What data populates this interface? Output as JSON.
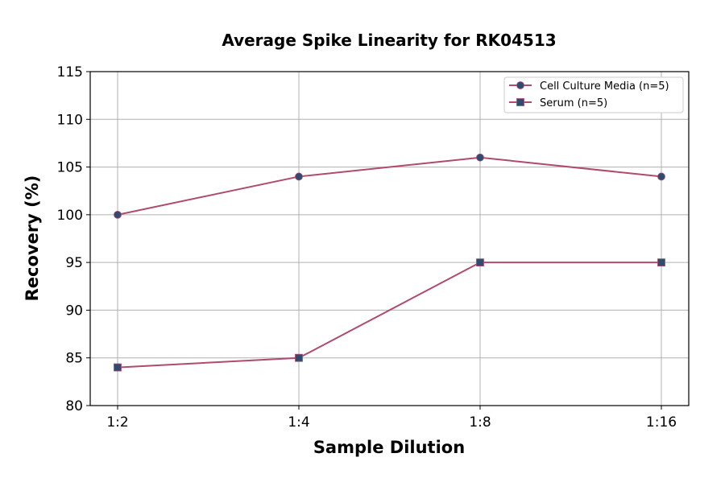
{
  "chart_data": {
    "type": "line",
    "title": "Average Spike Linearity for RK04513",
    "xlabel": "Sample Dilution",
    "ylabel": "Recovery (%)",
    "categories": [
      "1:2",
      "1:4",
      "1:8",
      "1:16"
    ],
    "ylim": [
      80,
      115
    ],
    "yticks": [
      80,
      85,
      90,
      95,
      100,
      105,
      110,
      115
    ],
    "grid": true,
    "legend_position": "top-right",
    "series": [
      {
        "name": "Cell Culture Media (n=5)",
        "values": [
          100,
          104,
          106,
          104
        ],
        "marker": "circle",
        "line_color": "#b04a6e",
        "marker_color": "#2f4b70"
      },
      {
        "name": "Serum (n=5)",
        "values": [
          84,
          85,
          95,
          95
        ],
        "marker": "square",
        "line_color": "#b04a6e",
        "marker_color": "#2f4b70"
      }
    ]
  }
}
